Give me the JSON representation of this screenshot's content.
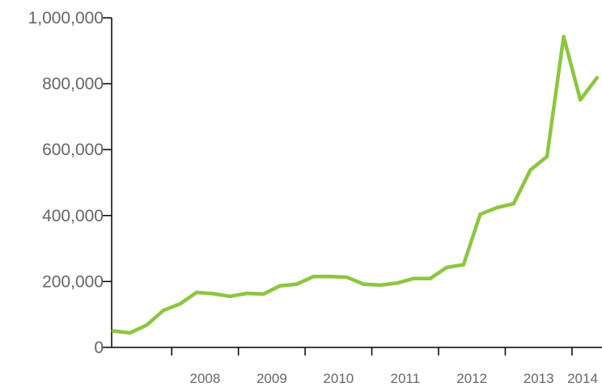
{
  "chart_data": {
    "type": "line",
    "title": "",
    "xlabel": "",
    "ylabel": "",
    "ylim": [
      0,
      1000000
    ],
    "xlim": [
      2007.1,
      2014.45
    ],
    "grid": false,
    "legend": "none",
    "y_ticks": [
      {
        "value": 0,
        "label": "0"
      },
      {
        "value": 200000,
        "label": "200,000"
      },
      {
        "value": 400000,
        "label": "400,000"
      },
      {
        "value": 600000,
        "label": "600,000"
      },
      {
        "value": 800000,
        "label": "800,000"
      },
      {
        "value": 1000000,
        "label": "1,000,000"
      }
    ],
    "x_ticks": [
      {
        "value": 2008,
        "label": "2008"
      },
      {
        "value": 2009,
        "label": "2009"
      },
      {
        "value": 2010,
        "label": "2010"
      },
      {
        "value": 2011,
        "label": "2011"
      },
      {
        "value": 2012,
        "label": "2012"
      },
      {
        "value": 2013,
        "label": "2013"
      },
      {
        "value": 2014,
        "label": "2014"
      }
    ],
    "series": [
      {
        "color": "#8cc63f",
        "points": [
          {
            "x": 2007.125,
            "y": 50000
          },
          {
            "x": 2007.375,
            "y": 44000
          },
          {
            "x": 2007.625,
            "y": 68000
          },
          {
            "x": 2007.875,
            "y": 112000
          },
          {
            "x": 2008.125,
            "y": 132000
          },
          {
            "x": 2008.375,
            "y": 167000
          },
          {
            "x": 2008.625,
            "y": 163000
          },
          {
            "x": 2008.875,
            "y": 155000
          },
          {
            "x": 2009.125,
            "y": 164000
          },
          {
            "x": 2009.375,
            "y": 162000
          },
          {
            "x": 2009.625,
            "y": 187000
          },
          {
            "x": 2009.875,
            "y": 192000
          },
          {
            "x": 2010.125,
            "y": 215000
          },
          {
            "x": 2010.375,
            "y": 215000
          },
          {
            "x": 2010.625,
            "y": 213000
          },
          {
            "x": 2010.875,
            "y": 192000
          },
          {
            "x": 2011.125,
            "y": 189000
          },
          {
            "x": 2011.375,
            "y": 195000
          },
          {
            "x": 2011.625,
            "y": 209000
          },
          {
            "x": 2011.875,
            "y": 209000
          },
          {
            "x": 2012.125,
            "y": 243000
          },
          {
            "x": 2012.375,
            "y": 251000
          },
          {
            "x": 2012.625,
            "y": 404000
          },
          {
            "x": 2012.875,
            "y": 424000
          },
          {
            "x": 2013.125,
            "y": 436000
          },
          {
            "x": 2013.375,
            "y": 538000
          },
          {
            "x": 2013.625,
            "y": 579000
          },
          {
            "x": 2013.875,
            "y": 943000
          },
          {
            "x": 2014.125,
            "y": 751000
          },
          {
            "x": 2014.375,
            "y": 818000
          }
        ]
      }
    ]
  }
}
